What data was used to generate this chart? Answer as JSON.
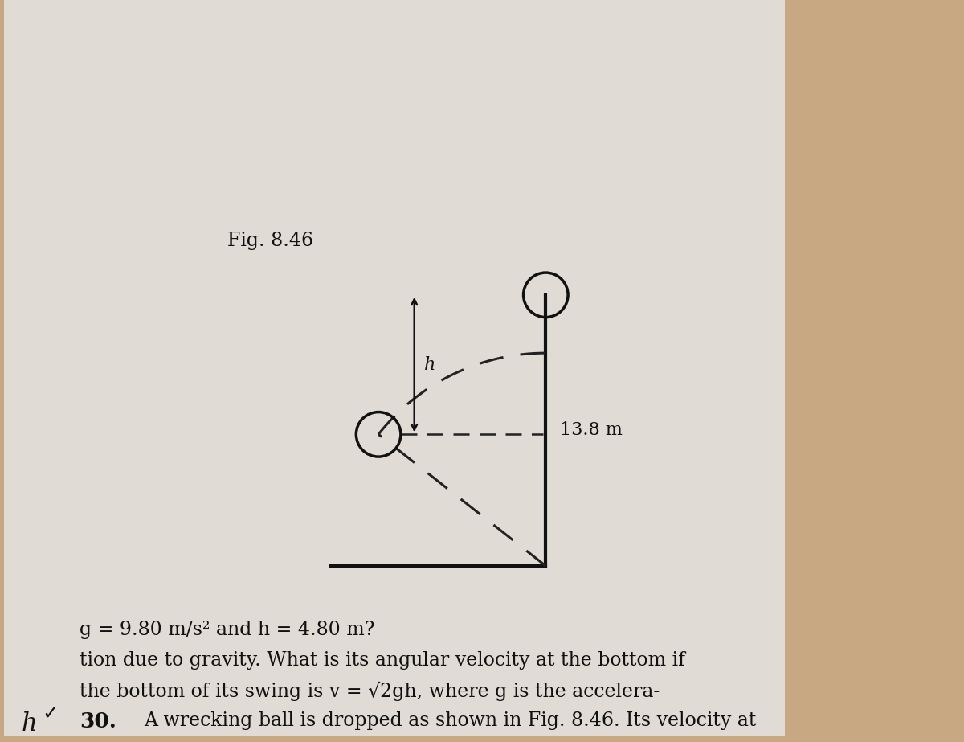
{
  "bg_color": "#c8a882",
  "paper_color": "#e0dbd4",
  "title_number": "30.",
  "problem_text_line1": "A wrecking ball is dropped as shown in Fig. 8.46. Its velocity at",
  "problem_text_line2": "the bottom of its swing is v = √2gh, where g is the accelera-",
  "problem_text_line3": "tion due to gravity. What is its angular velocity at the bottom if",
  "problem_text_line4": "g = 9.80 m/s² and h = 4.80 m?",
  "fig_label": "Fig. 8.46",
  "dim_label": "13.8 m",
  "h_label": "h",
  "text_color": "#111111",
  "line_color": "#111111",
  "dashed_color": "#222222",
  "margin_h": "h",
  "margin_check": "✓"
}
